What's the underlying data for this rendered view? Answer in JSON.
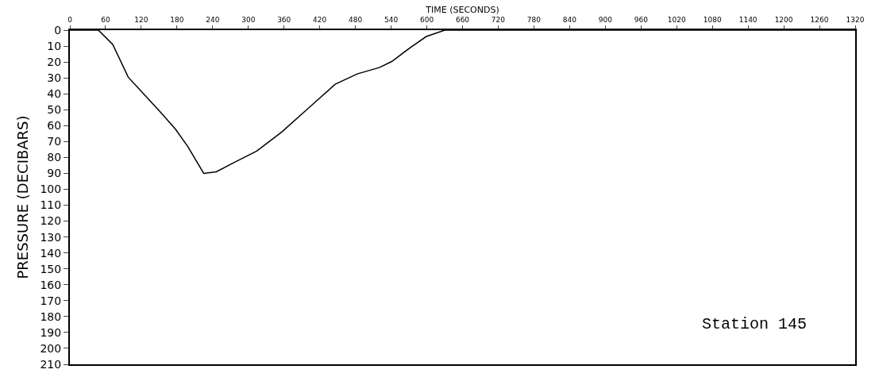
{
  "chart_data": {
    "type": "line",
    "xlabel": "TIME (SECONDS)",
    "ylabel": "PRESSURE (DECIBARS)",
    "annotations": [
      "Station 145"
    ],
    "x": [
      0,
      48,
      72,
      98,
      119,
      151,
      177,
      198,
      225,
      246,
      277,
      314,
      356,
      398,
      446,
      483,
      520,
      541,
      572,
      599,
      630,
      1320
    ],
    "series": [
      {
        "color": "#000000",
        "values": [
          0,
          0,
          9,
          29.5,
          38,
          51,
          62,
          73,
          90,
          89,
          83,
          76,
          64,
          50,
          34,
          27.5,
          23.5,
          19.7,
          11,
          4,
          0,
          0
        ]
      }
    ],
    "xlim": [
      0,
      1320
    ],
    "xticks": [
      0,
      60,
      120,
      180,
      240,
      300,
      360,
      420,
      480,
      540,
      600,
      660,
      720,
      780,
      840,
      900,
      960,
      1020,
      1080,
      1140,
      1200,
      1260,
      1320
    ],
    "ylim": [
      210,
      0
    ],
    "yticks": [
      0,
      10,
      20,
      30,
      40,
      50,
      60,
      70,
      80,
      90,
      100,
      110,
      120,
      130,
      140,
      150,
      160,
      170,
      180,
      190,
      200,
      210
    ],
    "marker": "none",
    "line_style": "solid"
  }
}
